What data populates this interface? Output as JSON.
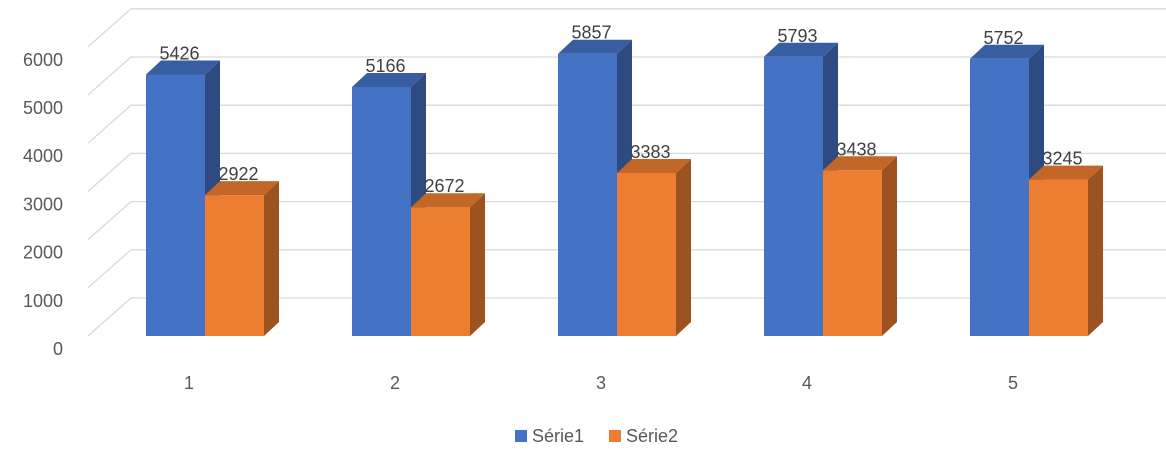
{
  "chart_data": {
    "type": "bar",
    "variant": "3d-clustered-column",
    "categories": [
      "1",
      "2",
      "3",
      "4",
      "5"
    ],
    "series": [
      {
        "name": "Série1",
        "values": [
          5426,
          5166,
          5857,
          5793,
          5752
        ],
        "color": "#4472C4"
      },
      {
        "name": "Série2",
        "values": [
          2922,
          2672,
          3383,
          3438,
          3245
        ],
        "color": "#ED7D31"
      }
    ],
    "title": "",
    "xlabel": "",
    "ylabel": "",
    "ylim": [
      0,
      6000
    ],
    "yticks": [
      0,
      1000,
      2000,
      3000,
      4000,
      5000,
      6000
    ],
    "grid": true,
    "data_labels": true,
    "legend": {
      "position": "bottom"
    }
  }
}
